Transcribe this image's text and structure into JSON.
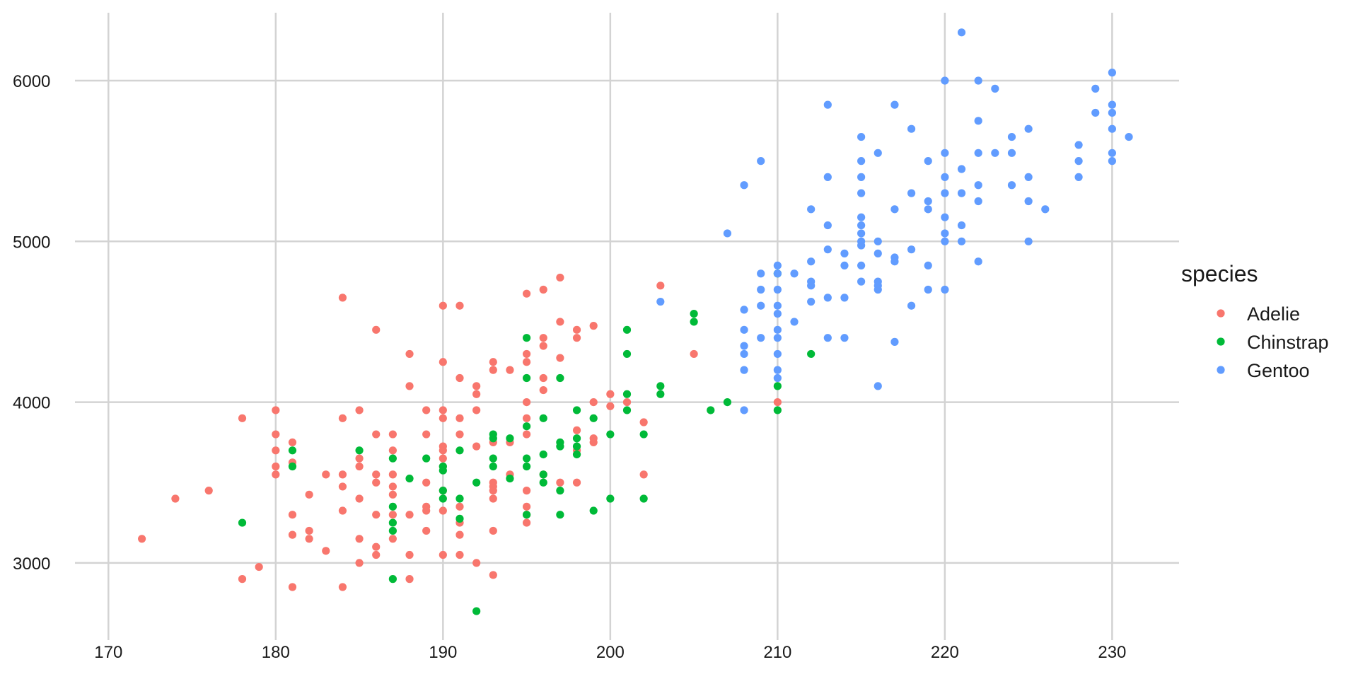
{
  "chart_data": {
    "type": "scatter",
    "title": "",
    "xlabel": "",
    "ylabel": "",
    "xlim": [
      168,
      234
    ],
    "ylim": [
      2520,
      6440
    ],
    "x_ticks": [
      "170",
      "180",
      "190",
      "200",
      "210",
      "220",
      "230"
    ],
    "y_ticks": [
      "3000",
      "4000",
      "5000",
      "6000"
    ],
    "grid": true,
    "legend": {
      "title": "species",
      "position": "right"
    },
    "series": [
      {
        "name": "Adelie",
        "color": "#F8766D",
        "points": [
          [
            172,
            3150
          ],
          [
            174,
            3400
          ],
          [
            176,
            3450
          ],
          [
            178,
            3900
          ],
          [
            178,
            2900
          ],
          [
            179,
            2975
          ],
          [
            180,
            3950
          ],
          [
            180,
            3800
          ],
          [
            180,
            3700
          ],
          [
            180,
            3600
          ],
          [
            180,
            3550
          ],
          [
            181,
            3750
          ],
          [
            181,
            3625
          ],
          [
            181,
            3300
          ],
          [
            181,
            3175
          ],
          [
            181,
            2850
          ],
          [
            182,
            3425
          ],
          [
            182,
            3200
          ],
          [
            182,
            3150
          ],
          [
            183,
            3550
          ],
          [
            183,
            3075
          ],
          [
            184,
            4650
          ],
          [
            184,
            3900
          ],
          [
            184,
            3550
          ],
          [
            184,
            3475
          ],
          [
            184,
            3325
          ],
          [
            184,
            2850
          ],
          [
            185,
            3950
          ],
          [
            185,
            3650
          ],
          [
            185,
            3600
          ],
          [
            185,
            3400
          ],
          [
            185,
            3150
          ],
          [
            185,
            3000
          ],
          [
            186,
            4450
          ],
          [
            186,
            3800
          ],
          [
            186,
            3550
          ],
          [
            186,
            3500
          ],
          [
            186,
            3300
          ],
          [
            186,
            3100
          ],
          [
            186,
            3050
          ],
          [
            187,
            3800
          ],
          [
            187,
            3700
          ],
          [
            187,
            3550
          ],
          [
            187,
            3475
          ],
          [
            187,
            3425
          ],
          [
            187,
            3300
          ],
          [
            187,
            3150
          ],
          [
            188,
            4300
          ],
          [
            188,
            4100
          ],
          [
            188,
            3300
          ],
          [
            188,
            3050
          ],
          [
            188,
            2900
          ],
          [
            189,
            3950
          ],
          [
            189,
            3800
          ],
          [
            189,
            3500
          ],
          [
            189,
            3350
          ],
          [
            189,
            3325
          ],
          [
            189,
            3200
          ],
          [
            190,
            4600
          ],
          [
            190,
            4250
          ],
          [
            190,
            3950
          ],
          [
            190,
            3900
          ],
          [
            190,
            3725
          ],
          [
            190,
            3700
          ],
          [
            190,
            3650
          ],
          [
            190,
            3600
          ],
          [
            190,
            3450
          ],
          [
            190,
            3325
          ],
          [
            190,
            3050
          ],
          [
            191,
            4600
          ],
          [
            191,
            4150
          ],
          [
            191,
            3900
          ],
          [
            191,
            3800
          ],
          [
            191,
            3350
          ],
          [
            191,
            3250
          ],
          [
            191,
            3175
          ],
          [
            191,
            3050
          ],
          [
            192,
            4100
          ],
          [
            192,
            4050
          ],
          [
            192,
            3950
          ],
          [
            192,
            3725
          ],
          [
            192,
            3000
          ],
          [
            193,
            4250
          ],
          [
            193,
            4200
          ],
          [
            193,
            3750
          ],
          [
            193,
            3500
          ],
          [
            193,
            3475
          ],
          [
            193,
            3450
          ],
          [
            193,
            3400
          ],
          [
            193,
            3200
          ],
          [
            193,
            2925
          ],
          [
            194,
            4200
          ],
          [
            194,
            3750
          ],
          [
            194,
            3550
          ],
          [
            195,
            4675
          ],
          [
            195,
            4300
          ],
          [
            195,
            4250
          ],
          [
            195,
            4000
          ],
          [
            195,
            3900
          ],
          [
            195,
            3800
          ],
          [
            195,
            3450
          ],
          [
            195,
            3350
          ],
          [
            195,
            3300
          ],
          [
            195,
            3250
          ],
          [
            196,
            4700
          ],
          [
            196,
            4400
          ],
          [
            196,
            4350
          ],
          [
            196,
            4150
          ],
          [
            196,
            4075
          ],
          [
            196,
            3550
          ],
          [
            197,
            4775
          ],
          [
            197,
            4500
          ],
          [
            197,
            4275
          ],
          [
            197,
            3500
          ],
          [
            198,
            4450
          ],
          [
            198,
            4400
          ],
          [
            198,
            3825
          ],
          [
            198,
            3700
          ],
          [
            198,
            3500
          ],
          [
            199,
            4475
          ],
          [
            199,
            4000
          ],
          [
            199,
            3775
          ],
          [
            199,
            3750
          ],
          [
            200,
            4050
          ],
          [
            200,
            3975
          ],
          [
            201,
            4000
          ],
          [
            202,
            3875
          ],
          [
            202,
            3550
          ],
          [
            203,
            4725
          ],
          [
            205,
            4300
          ],
          [
            210,
            4000
          ]
        ]
      },
      {
        "name": "Chinstrap",
        "color": "#00BA38",
        "points": [
          [
            178,
            3250
          ],
          [
            181,
            3700
          ],
          [
            181,
            3600
          ],
          [
            185,
            3700
          ],
          [
            187,
            3650
          ],
          [
            187,
            3350
          ],
          [
            187,
            3250
          ],
          [
            187,
            3200
          ],
          [
            187,
            2900
          ],
          [
            188,
            3525
          ],
          [
            189,
            3650
          ],
          [
            190,
            3600
          ],
          [
            190,
            3575
          ],
          [
            190,
            3450
          ],
          [
            190,
            3400
          ],
          [
            191,
            3700
          ],
          [
            191,
            3400
          ],
          [
            191,
            3275
          ],
          [
            192,
            3500
          ],
          [
            192,
            2700
          ],
          [
            193,
            3800
          ],
          [
            193,
            3775
          ],
          [
            193,
            3650
          ],
          [
            193,
            3600
          ],
          [
            194,
            3775
          ],
          [
            194,
            3525
          ],
          [
            195,
            4400
          ],
          [
            195,
            4150
          ],
          [
            195,
            3850
          ],
          [
            195,
            3650
          ],
          [
            195,
            3600
          ],
          [
            195,
            3300
          ],
          [
            196,
            3900
          ],
          [
            196,
            3675
          ],
          [
            196,
            3550
          ],
          [
            196,
            3500
          ],
          [
            197,
            4150
          ],
          [
            197,
            3750
          ],
          [
            197,
            3725
          ],
          [
            197,
            3450
          ],
          [
            197,
            3300
          ],
          [
            198,
            3950
          ],
          [
            198,
            3775
          ],
          [
            198,
            3725
          ],
          [
            198,
            3675
          ],
          [
            199,
            3900
          ],
          [
            199,
            3325
          ],
          [
            200,
            3800
          ],
          [
            200,
            3400
          ],
          [
            201,
            4450
          ],
          [
            201,
            4300
          ],
          [
            201,
            4050
          ],
          [
            201,
            3950
          ],
          [
            202,
            3800
          ],
          [
            202,
            3400
          ],
          [
            203,
            4100
          ],
          [
            203,
            4050
          ],
          [
            205,
            4550
          ],
          [
            205,
            4500
          ],
          [
            206,
            3950
          ],
          [
            207,
            4000
          ],
          [
            210,
            4800
          ],
          [
            210,
            4100
          ],
          [
            210,
            3950
          ],
          [
            212,
            4300
          ]
        ]
      },
      {
        "name": "Gentoo",
        "color": "#619CFF",
        "points": [
          [
            203,
            4625
          ],
          [
            207,
            5050
          ],
          [
            208,
            5350
          ],
          [
            208,
            4575
          ],
          [
            208,
            4450
          ],
          [
            208,
            4350
          ],
          [
            208,
            4300
          ],
          [
            208,
            4200
          ],
          [
            208,
            3950
          ],
          [
            209,
            5500
          ],
          [
            209,
            4800
          ],
          [
            209,
            4700
          ],
          [
            209,
            4600
          ],
          [
            209,
            4400
          ],
          [
            210,
            4850
          ],
          [
            210,
            4800
          ],
          [
            210,
            4700
          ],
          [
            210,
            4600
          ],
          [
            210,
            4550
          ],
          [
            210,
            4450
          ],
          [
            210,
            4400
          ],
          [
            210,
            4300
          ],
          [
            210,
            4200
          ],
          [
            210,
            4150
          ],
          [
            211,
            4800
          ],
          [
            211,
            4500
          ],
          [
            212,
            5200
          ],
          [
            212,
            4875
          ],
          [
            212,
            4750
          ],
          [
            212,
            4725
          ],
          [
            212,
            4625
          ],
          [
            213,
            5850
          ],
          [
            213,
            5400
          ],
          [
            213,
            5100
          ],
          [
            213,
            4950
          ],
          [
            213,
            4650
          ],
          [
            213,
            4400
          ],
          [
            214,
            4925
          ],
          [
            214,
            4850
          ],
          [
            214,
            4650
          ],
          [
            214,
            4400
          ],
          [
            215,
            5650
          ],
          [
            215,
            5500
          ],
          [
            215,
            5400
          ],
          [
            215,
            5300
          ],
          [
            215,
            5150
          ],
          [
            215,
            5100
          ],
          [
            215,
            5050
          ],
          [
            215,
            5000
          ],
          [
            215,
            4975
          ],
          [
            215,
            4850
          ],
          [
            215,
            4750
          ],
          [
            216,
            5550
          ],
          [
            216,
            5000
          ],
          [
            216,
            4925
          ],
          [
            216,
            4750
          ],
          [
            216,
            4725
          ],
          [
            216,
            4700
          ],
          [
            216,
            4100
          ],
          [
            217,
            5850
          ],
          [
            217,
            5200
          ],
          [
            217,
            4900
          ],
          [
            217,
            4875
          ],
          [
            217,
            4375
          ],
          [
            218,
            5700
          ],
          [
            218,
            5300
          ],
          [
            218,
            4950
          ],
          [
            218,
            4600
          ],
          [
            219,
            5500
          ],
          [
            219,
            5250
          ],
          [
            219,
            5200
          ],
          [
            219,
            4850
          ],
          [
            219,
            4700
          ],
          [
            220,
            6000
          ],
          [
            220,
            5550
          ],
          [
            220,
            5400
          ],
          [
            220,
            5300
          ],
          [
            220,
            5150
          ],
          [
            220,
            5050
          ],
          [
            220,
            5000
          ],
          [
            220,
            4700
          ],
          [
            221,
            6300
          ],
          [
            221,
            5450
          ],
          [
            221,
            5300
          ],
          [
            221,
            5100
          ],
          [
            221,
            5000
          ],
          [
            222,
            6000
          ],
          [
            222,
            5750
          ],
          [
            222,
            5550
          ],
          [
            222,
            5350
          ],
          [
            222,
            5250
          ],
          [
            222,
            4875
          ],
          [
            223,
            5950
          ],
          [
            223,
            5550
          ],
          [
            224,
            5650
          ],
          [
            224,
            5550
          ],
          [
            224,
            5350
          ],
          [
            225,
            5700
          ],
          [
            225,
            5400
          ],
          [
            225,
            5250
          ],
          [
            225,
            5000
          ],
          [
            226,
            5200
          ],
          [
            228,
            5600
          ],
          [
            228,
            5500
          ],
          [
            228,
            5400
          ],
          [
            229,
            5950
          ],
          [
            229,
            5800
          ],
          [
            230,
            6050
          ],
          [
            230,
            5850
          ],
          [
            230,
            5800
          ],
          [
            230,
            5700
          ],
          [
            230,
            5550
          ],
          [
            230,
            5500
          ],
          [
            231,
            5650
          ]
        ]
      }
    ]
  }
}
